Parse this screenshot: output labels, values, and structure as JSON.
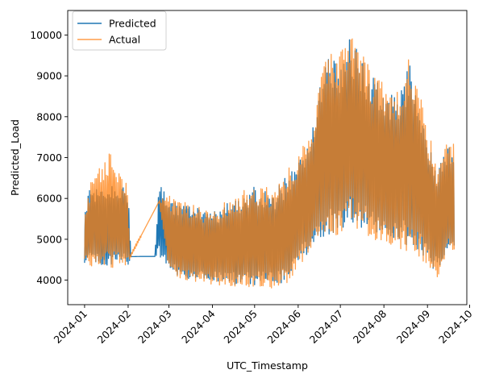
{
  "chart_data": {
    "type": "line",
    "title": "",
    "xlabel": "UTC_Timestamp",
    "ylabel": "Predicted_Load",
    "xlim": [
      "2023-12-20",
      "2024-09-29"
    ],
    "ylim": [
      3400,
      10600
    ],
    "x_ticks": [
      "2024-01",
      "2024-02",
      "2024-03",
      "2024-04",
      "2024-05",
      "2024-06",
      "2024-07",
      "2024-08",
      "2024-09",
      "2024-10"
    ],
    "y_ticks": [
      4000,
      5000,
      6000,
      7000,
      8000,
      9000,
      10000
    ],
    "legend_position": "top-left",
    "grid": false,
    "series": [
      {
        "name": "Predicted",
        "color": "#1f77b4",
        "envelope": [
          {
            "x": "2024-01-01",
            "low": 4400,
            "high": 5600
          },
          {
            "x": "2024-01-05",
            "low": 4350,
            "high": 6400
          },
          {
            "x": "2024-01-12",
            "low": 4300,
            "high": 6300
          },
          {
            "x": "2024-01-19",
            "low": 4300,
            "high": 6400
          },
          {
            "x": "2024-01-26",
            "low": 4300,
            "high": 6450
          },
          {
            "x": "2024-02-01",
            "low": 4350,
            "high": 6300
          },
          {
            "x": "2024-02-03",
            "low": 4550,
            "high": 4600
          },
          {
            "x": "2024-02-10",
            "low": 4580,
            "high": 4580
          },
          {
            "x": "2024-02-20",
            "low": 4580,
            "high": 4580
          },
          {
            "x": "2024-02-23",
            "low": 4580,
            "high": 6450
          },
          {
            "x": "2024-03-01",
            "low": 4200,
            "high": 6000
          },
          {
            "x": "2024-03-10",
            "low": 4000,
            "high": 6000
          },
          {
            "x": "2024-03-20",
            "low": 4000,
            "high": 5900
          },
          {
            "x": "2024-04-01",
            "low": 3950,
            "high": 5700
          },
          {
            "x": "2024-04-15",
            "low": 3850,
            "high": 6000
          },
          {
            "x": "2024-05-01",
            "low": 3800,
            "high": 6350
          },
          {
            "x": "2024-05-15",
            "low": 3800,
            "high": 6200
          },
          {
            "x": "2024-05-25",
            "low": 3950,
            "high": 6700
          },
          {
            "x": "2024-06-01",
            "low": 4300,
            "high": 7000
          },
          {
            "x": "2024-06-10",
            "low": 4700,
            "high": 7700
          },
          {
            "x": "2024-06-20",
            "low": 5000,
            "high": 9700
          },
          {
            "x": "2024-07-01",
            "low": 5100,
            "high": 9500
          },
          {
            "x": "2024-07-08",
            "low": 5300,
            "high": 10100
          },
          {
            "x": "2024-07-15",
            "low": 5200,
            "high": 9600
          },
          {
            "x": "2024-07-25",
            "low": 5000,
            "high": 9000
          },
          {
            "x": "2024-08-01",
            "low": 4900,
            "high": 8800
          },
          {
            "x": "2024-08-10",
            "low": 4800,
            "high": 8600
          },
          {
            "x": "2024-08-20",
            "low": 4700,
            "high": 9500
          },
          {
            "x": "2024-09-01",
            "low": 4400,
            "high": 7600
          },
          {
            "x": "2024-09-08",
            "low": 4100,
            "high": 6800
          },
          {
            "x": "2024-09-15",
            "low": 4600,
            "high": 7400
          },
          {
            "x": "2024-09-20",
            "low": 4700,
            "high": 7300
          }
        ]
      },
      {
        "name": "Actual",
        "color": "#ff7f0e",
        "envelope": [
          {
            "x": "2024-01-01",
            "low": 4400,
            "high": 5700
          },
          {
            "x": "2024-01-05",
            "low": 4300,
            "high": 6400
          },
          {
            "x": "2024-01-12",
            "low": 4250,
            "high": 6900
          },
          {
            "x": "2024-01-19",
            "low": 4250,
            "high": 7200
          },
          {
            "x": "2024-01-26",
            "low": 4250,
            "high": 6800
          },
          {
            "x": "2024-02-01",
            "low": 4300,
            "high": 6400
          },
          {
            "x": "2024-02-02",
            "low": 4500,
            "high": 4600
          },
          {
            "x": "2024-02-23",
            "low": 5900,
            "high": 5950
          },
          {
            "x": "2024-03-01",
            "low": 4100,
            "high": 6100
          },
          {
            "x": "2024-03-10",
            "low": 3950,
            "high": 6000
          },
          {
            "x": "2024-03-20",
            "low": 3900,
            "high": 5900
          },
          {
            "x": "2024-04-01",
            "low": 3850,
            "high": 5700
          },
          {
            "x": "2024-04-15",
            "low": 3800,
            "high": 6100
          },
          {
            "x": "2024-05-01",
            "low": 3750,
            "high": 6400
          },
          {
            "x": "2024-05-15",
            "low": 3750,
            "high": 6300
          },
          {
            "x": "2024-05-25",
            "low": 3850,
            "high": 6800
          },
          {
            "x": "2024-06-01",
            "low": 4200,
            "high": 7100
          },
          {
            "x": "2024-06-10",
            "low": 4600,
            "high": 7800
          },
          {
            "x": "2024-06-20",
            "low": 4900,
            "high": 9900
          },
          {
            "x": "2024-07-01",
            "low": 5000,
            "high": 9700
          },
          {
            "x": "2024-07-08",
            "low": 5200,
            "high": 10250
          },
          {
            "x": "2024-07-15",
            "low": 5100,
            "high": 9800
          },
          {
            "x": "2024-07-25",
            "low": 4900,
            "high": 9100
          },
          {
            "x": "2024-08-01",
            "low": 4800,
            "high": 8900
          },
          {
            "x": "2024-08-10",
            "low": 4700,
            "high": 8700
          },
          {
            "x": "2024-08-20",
            "low": 4600,
            "high": 9700
          },
          {
            "x": "2024-09-01",
            "low": 4300,
            "high": 7800
          },
          {
            "x": "2024-09-08",
            "low": 4000,
            "high": 6900
          },
          {
            "x": "2024-09-15",
            "low": 4500,
            "high": 7500
          },
          {
            "x": "2024-09-20",
            "low": 4600,
            "high": 7400
          }
        ]
      }
    ]
  }
}
